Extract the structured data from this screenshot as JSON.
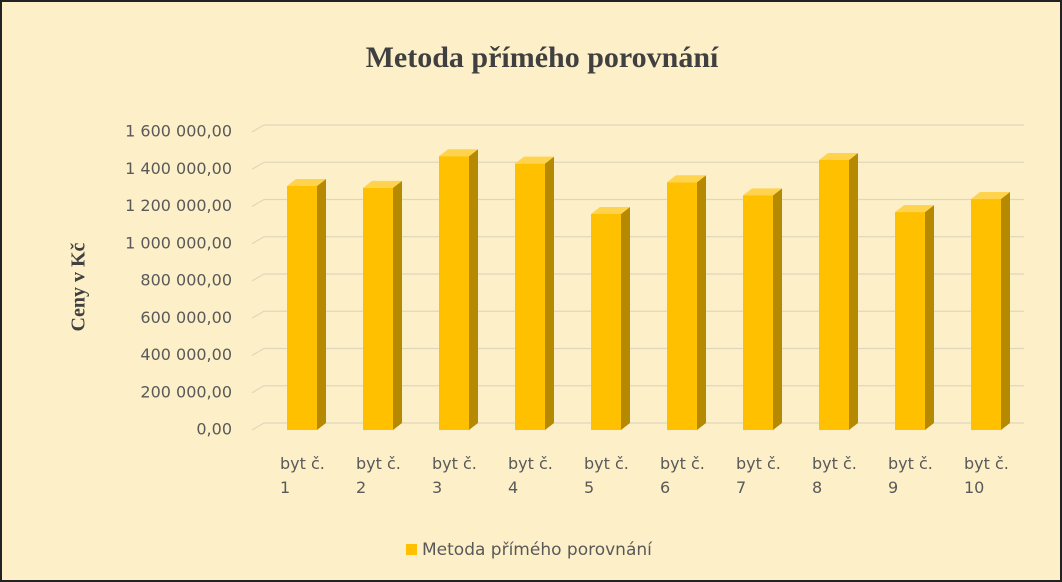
{
  "chart_data": {
    "type": "bar3d",
    "title": "Metoda přímého porovnání",
    "y_label": "Ceny v Kč",
    "categories": [
      "byt č. 1",
      "byt č. 2",
      "byt č. 3",
      "byt č. 4",
      "byt č. 5",
      "byt č. 6",
      "byt č. 7",
      "byt č. 8",
      "byt č. 9",
      "byt č. 10"
    ],
    "series": [
      {
        "name": "Metoda přímého porovnání",
        "color": "#ffc000",
        "values": [
          1310000,
          1300000,
          1470000,
          1430000,
          1160000,
          1330000,
          1260000,
          1450000,
          1170000,
          1240000
        ]
      }
    ],
    "ylim": [
      0,
      1600000
    ],
    "yticks": [
      {
        "value": 0,
        "label": "0,00"
      },
      {
        "value": 200000,
        "label": "200 000,00"
      },
      {
        "value": 400000,
        "label": "400 000,00"
      },
      {
        "value": 600000,
        "label": "600 000,00"
      },
      {
        "value": 800000,
        "label": "800 000,00"
      },
      {
        "value": 1000000,
        "label": "1 000 000,00"
      },
      {
        "value": 1200000,
        "label": "1 200 000,00"
      },
      {
        "value": 1400000,
        "label": "1 400 000,00"
      },
      {
        "value": 1600000,
        "label": "1 600 000,00"
      }
    ],
    "grid": true,
    "legend": "bottom"
  }
}
